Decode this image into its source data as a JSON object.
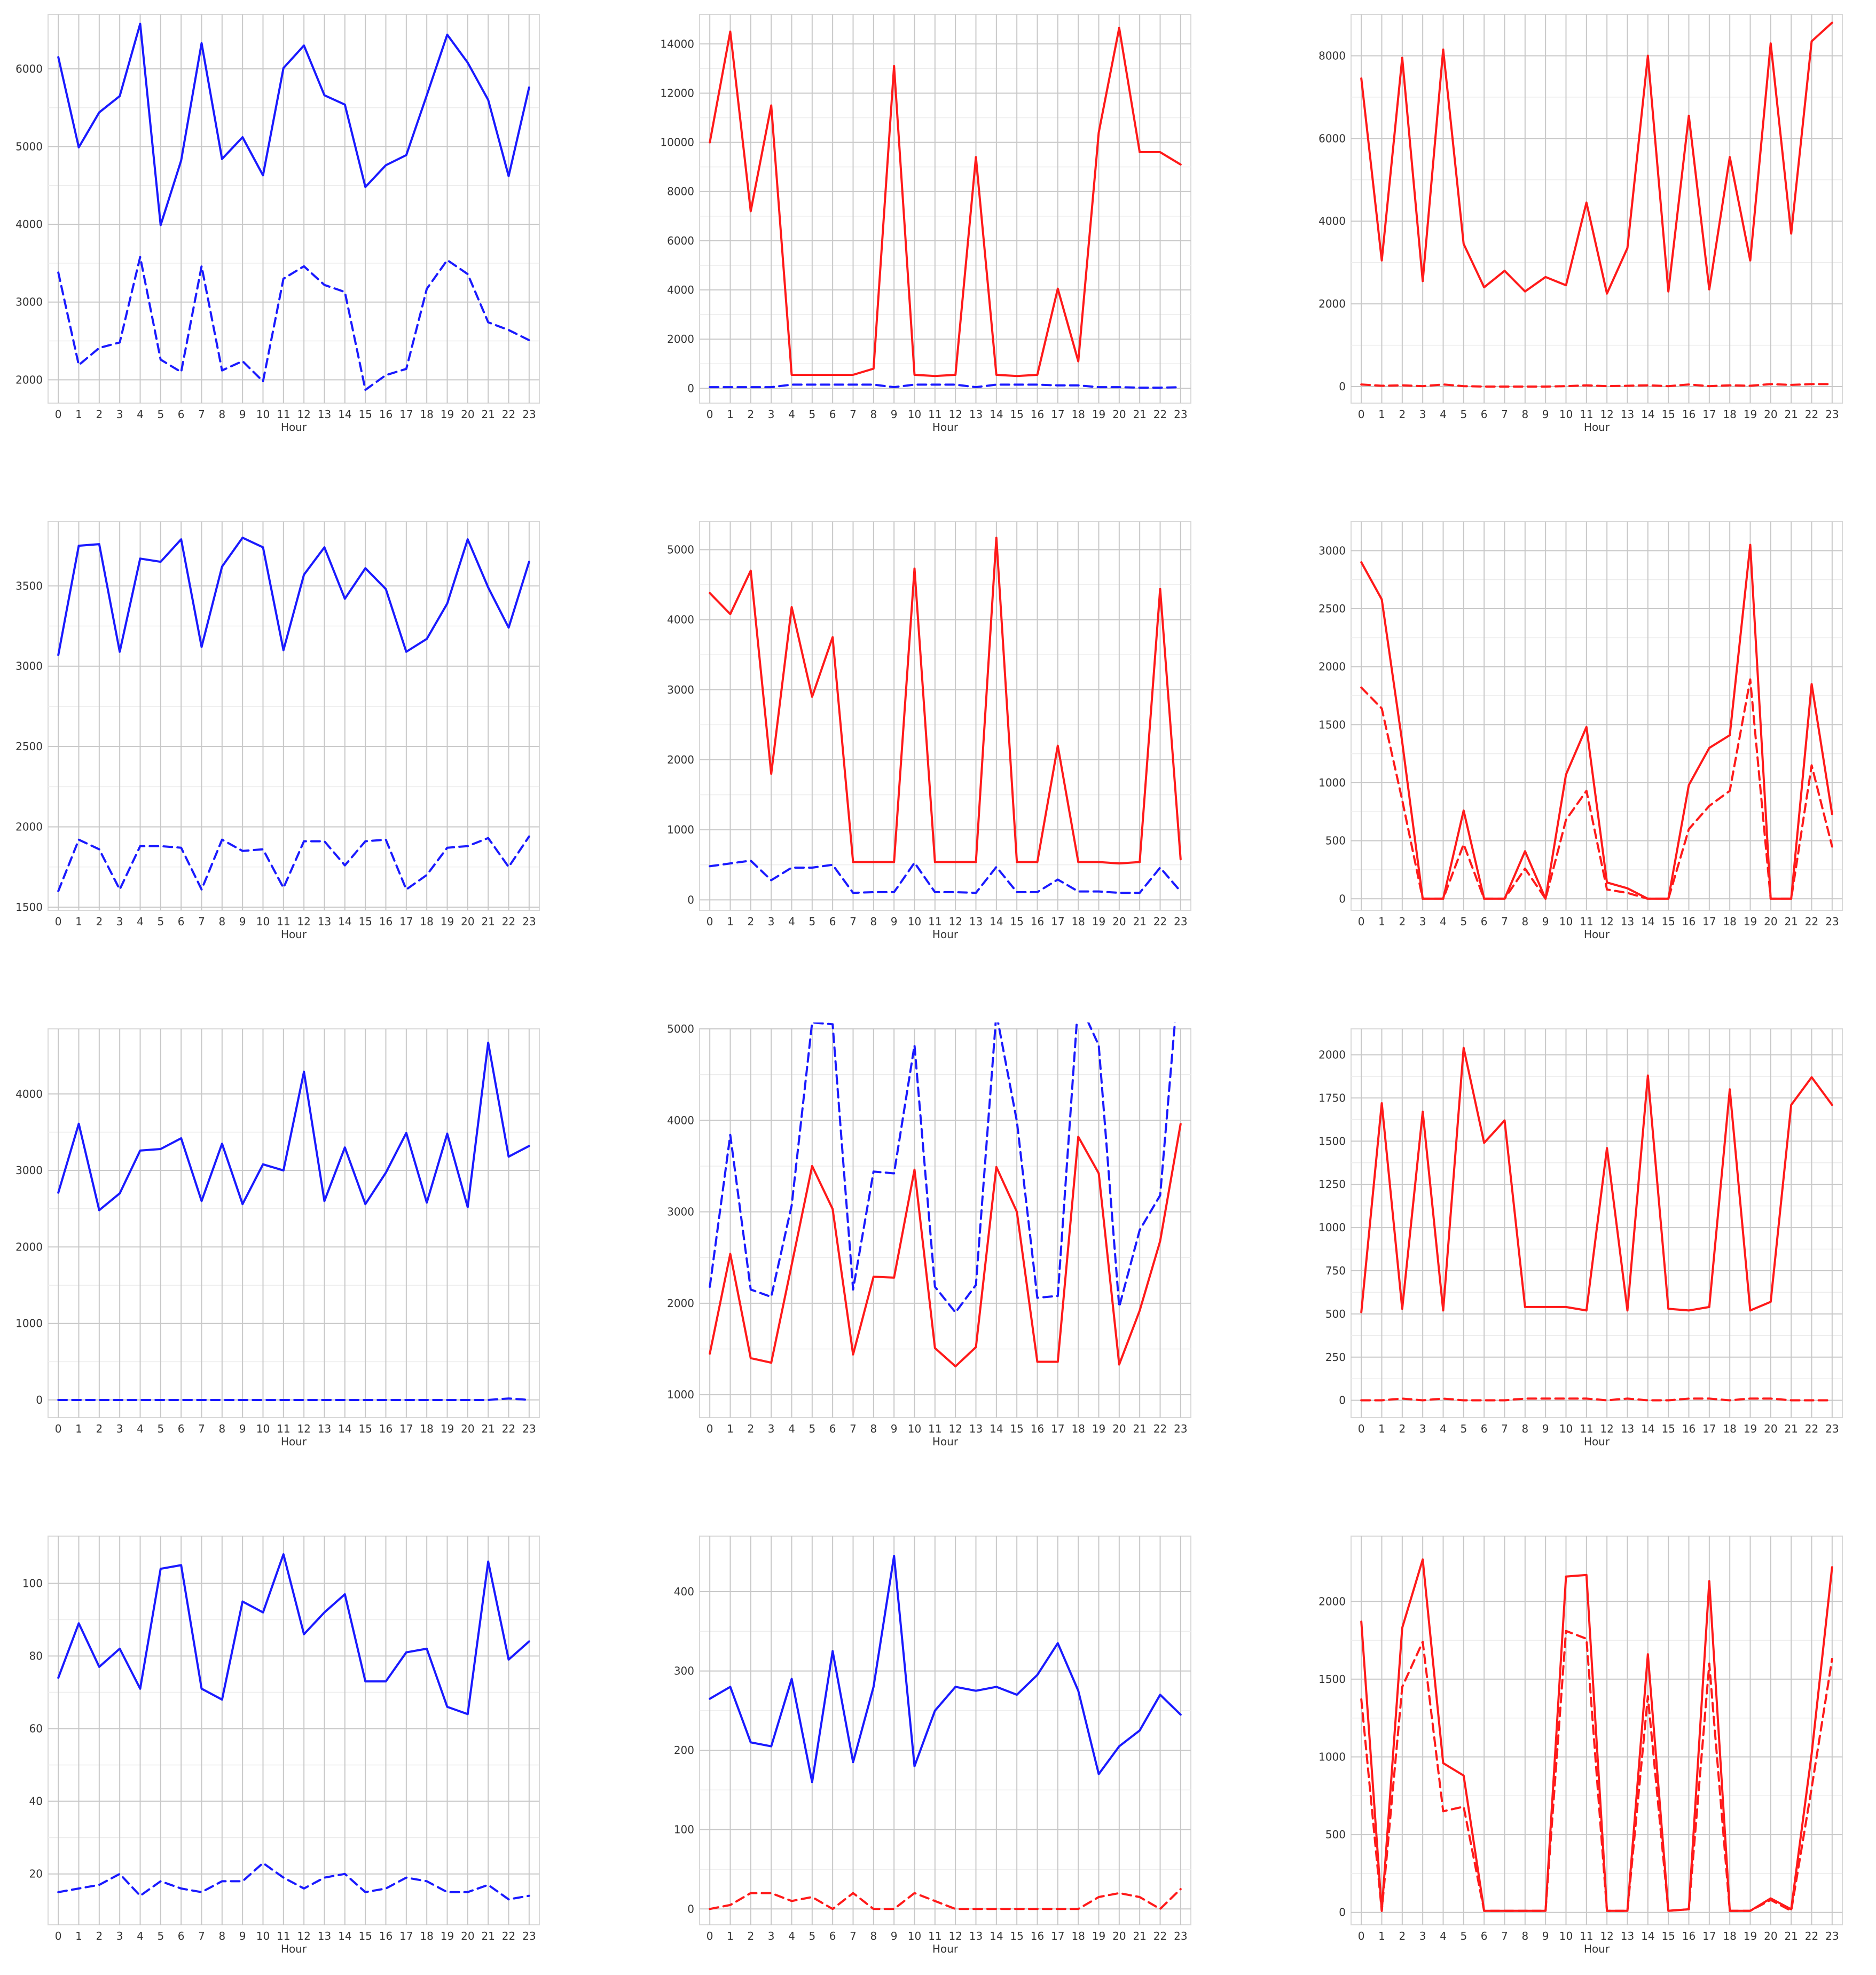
{
  "hours": [
    "0",
    "1",
    "2",
    "3",
    "4",
    "5",
    "6",
    "7",
    "8",
    "9",
    "10",
    "11",
    "12",
    "13",
    "14",
    "15",
    "16",
    "17",
    "18",
    "19",
    "20",
    "21",
    "22",
    "23"
  ],
  "colors": {
    "blue": "#1a1aff",
    "red": "#ff1a1a"
  },
  "chart_data": [
    {
      "type": "line",
      "xlabel": "Hour",
      "ylabel": "",
      "ylim": [
        1700,
        6700
      ],
      "yticks": [
        2000,
        3000,
        4000,
        5000,
        6000
      ],
      "grid": true,
      "series": [
        {
          "color": "blue",
          "style": "solid",
          "values": [
            6150,
            4990,
            5440,
            5650,
            6580,
            3990,
            4820,
            6330,
            4840,
            5120,
            4630,
            6010,
            6300,
            5660,
            5540,
            4480,
            4760,
            4890,
            5660,
            6440,
            6080,
            5600,
            4620,
            5760
          ]
        },
        {
          "color": "blue",
          "style": "dashed",
          "values": [
            3380,
            2190,
            2410,
            2480,
            3580,
            2260,
            2100,
            3460,
            2120,
            2240,
            1980,
            3300,
            3460,
            3220,
            3130,
            1870,
            2060,
            2140,
            3170,
            3540,
            3360,
            2740,
            2640,
            2510
          ]
        }
      ]
    },
    {
      "type": "line",
      "xlabel": "Hour",
      "ylabel": "",
      "ylim": [
        -600,
        15200
      ],
      "yticks": [
        0,
        2000,
        4000,
        6000,
        8000,
        10000,
        12000,
        14000
      ],
      "grid": true,
      "series": [
        {
          "color": "red",
          "style": "solid",
          "values": [
            10000,
            14500,
            7200,
            11500,
            550,
            550,
            550,
            550,
            800,
            13100,
            550,
            500,
            550,
            9400,
            550,
            500,
            550,
            4050,
            1100,
            10400,
            14650,
            9600,
            9600,
            9100
          ]
        },
        {
          "color": "blue",
          "style": "dashed",
          "values": [
            50,
            50,
            50,
            50,
            150,
            150,
            150,
            150,
            150,
            50,
            150,
            150,
            150,
            50,
            150,
            150,
            150,
            120,
            120,
            50,
            50,
            30,
            30,
            50
          ]
        }
      ]
    },
    {
      "type": "line",
      "xlabel": "Hour",
      "ylabel": "",
      "ylim": [
        -400,
        9000
      ],
      "yticks": [
        0,
        2000,
        4000,
        6000,
        8000
      ],
      "grid": true,
      "series": [
        {
          "color": "red",
          "style": "solid",
          "values": [
            7450,
            3050,
            7950,
            2550,
            8150,
            3450,
            2400,
            2800,
            2300,
            2650,
            2450,
            4450,
            2250,
            3350,
            8000,
            2300,
            6550,
            2350,
            5550,
            3050,
            8300,
            3700,
            8350,
            8800
          ]
        },
        {
          "color": "red",
          "style": "dashed",
          "values": [
            50,
            20,
            30,
            10,
            50,
            10,
            0,
            0,
            0,
            0,
            10,
            30,
            10,
            20,
            30,
            10,
            50,
            10,
            30,
            20,
            60,
            40,
            60,
            60
          ]
        }
      ]
    },
    {
      "type": "line",
      "xlabel": "Hour",
      "ylabel": "",
      "ylim": [
        1480,
        3900
      ],
      "yticks": [
        1500,
        2000,
        2500,
        3000,
        3500
      ],
      "grid": true,
      "series": [
        {
          "color": "blue",
          "style": "solid",
          "values": [
            3070,
            3750,
            3760,
            3090,
            3670,
            3650,
            3790,
            3120,
            3620,
            3800,
            3740,
            3100,
            3570,
            3740,
            3420,
            3610,
            3480,
            3090,
            3170,
            3390,
            3790,
            3490,
            3240,
            3650
          ]
        },
        {
          "color": "blue",
          "style": "dashed",
          "values": [
            1600,
            1920,
            1860,
            1610,
            1880,
            1880,
            1870,
            1610,
            1920,
            1850,
            1860,
            1620,
            1910,
            1910,
            1760,
            1910,
            1920,
            1610,
            1700,
            1870,
            1880,
            1930,
            1750,
            1940
          ]
        }
      ]
    },
    {
      "type": "line",
      "xlabel": "Hour",
      "ylabel": "",
      "ylim": [
        -150,
        5400
      ],
      "yticks": [
        0,
        1000,
        2000,
        3000,
        4000,
        5000
      ],
      "grid": true,
      "series": [
        {
          "color": "red",
          "style": "solid",
          "values": [
            4380,
            4080,
            4700,
            1800,
            4180,
            2900,
            3750,
            540,
            540,
            540,
            4730,
            540,
            540,
            540,
            5170,
            540,
            540,
            2200,
            540,
            540,
            520,
            540,
            4440,
            580
          ]
        },
        {
          "color": "blue",
          "style": "dashed",
          "values": [
            480,
            520,
            560,
            280,
            460,
            460,
            500,
            100,
            110,
            110,
            530,
            110,
            110,
            100,
            470,
            110,
            110,
            290,
            120,
            120,
            100,
            100,
            460,
            120
          ]
        }
      ]
    },
    {
      "type": "line",
      "xlabel": "Hour",
      "ylabel": "",
      "ylim": [
        -100,
        3250
      ],
      "yticks": [
        0,
        500,
        1000,
        1500,
        2000,
        2500,
        3000
      ],
      "grid": true,
      "series": [
        {
          "color": "red",
          "style": "solid",
          "values": [
            2900,
            2580,
            1350,
            0,
            0,
            760,
            0,
            0,
            410,
            0,
            1070,
            1480,
            140,
            90,
            0,
            0,
            980,
            1300,
            1410,
            3050,
            0,
            0,
            1850,
            730
          ]
        },
        {
          "color": "red",
          "style": "dashed",
          "values": [
            1820,
            1640,
            850,
            0,
            0,
            470,
            0,
            0,
            260,
            0,
            680,
            930,
            80,
            50,
            0,
            0,
            600,
            800,
            930,
            1890,
            0,
            0,
            1150,
            450
          ]
        }
      ]
    },
    {
      "type": "line",
      "xlabel": "Hour",
      "ylabel": "",
      "ylim": [
        -230,
        4850
      ],
      "yticks": [
        0,
        1000,
        2000,
        3000,
        4000
      ],
      "grid": true,
      "series": [
        {
          "color": "blue",
          "style": "solid",
          "values": [
            2710,
            3610,
            2480,
            2700,
            3260,
            3280,
            3420,
            2600,
            3350,
            2560,
            3080,
            3000,
            4290,
            2600,
            3300,
            2560,
            2970,
            3490,
            2580,
            3480,
            2520,
            4670,
            3180,
            3320
          ]
        },
        {
          "color": "blue",
          "style": "dashed",
          "values": [
            0,
            0,
            0,
            0,
            0,
            0,
            0,
            0,
            0,
            0,
            0,
            0,
            0,
            0,
            0,
            0,
            0,
            0,
            0,
            0,
            0,
            0,
            20,
            0
          ]
        }
      ]
    },
    {
      "type": "line",
      "xlabel": "Hour",
      "ylabel": "",
      "ylim": [
        750,
        5000
      ],
      "yticks": [
        1000,
        2000,
        3000,
        4000,
        5000
      ],
      "grid": true,
      "series": [
        {
          "color": "red",
          "style": "solid",
          "values": [
            1450,
            2540,
            1400,
            1350,
            2420,
            3500,
            3030,
            1440,
            2290,
            2280,
            3460,
            1510,
            1310,
            1520,
            3490,
            3000,
            1360,
            1360,
            3820,
            3420,
            1330,
            1920,
            2680,
            3960
          ]
        },
        {
          "color": "blue",
          "style": "dashed",
          "values": [
            2180,
            3840,
            2150,
            2070,
            3070,
            5070,
            5050,
            2150,
            3440,
            3420,
            4820,
            2180,
            1900,
            2200,
            5170,
            3990,
            2060,
            2080,
            5310,
            4820,
            1960,
            2800,
            3180,
            5800
          ]
        }
      ]
    },
    {
      "type": "line",
      "xlabel": "Hour",
      "ylabel": "",
      "ylim": [
        -100,
        2150
      ],
      "yticks": [
        0,
        250,
        500,
        750,
        1000,
        1250,
        1500,
        1750,
        2000
      ],
      "grid": true,
      "series": [
        {
          "color": "red",
          "style": "solid",
          "values": [
            510,
            1720,
            530,
            1670,
            520,
            2040,
            1490,
            1620,
            540,
            540,
            540,
            520,
            1460,
            520,
            1880,
            530,
            520,
            540,
            1800,
            520,
            570,
            1710,
            1870,
            1710
          ]
        },
        {
          "color": "red",
          "style": "dashed",
          "values": [
            0,
            0,
            10,
            0,
            10,
            0,
            0,
            0,
            10,
            10,
            10,
            10,
            0,
            10,
            0,
            0,
            10,
            10,
            0,
            10,
            10,
            0,
            0,
            0
          ]
        }
      ]
    },
    {
      "type": "line",
      "xlabel": "Hour",
      "ylabel": "",
      "ylim": [
        6,
        113
      ],
      "yticks": [
        20,
        40,
        60,
        80,
        100
      ],
      "grid": true,
      "series": [
        {
          "color": "blue",
          "style": "solid",
          "values": [
            74,
            89,
            77,
            82,
            71,
            104,
            105,
            71,
            68,
            95,
            92,
            108,
            86,
            92,
            97,
            73,
            73,
            81,
            82,
            66,
            64,
            106,
            79,
            84
          ]
        },
        {
          "color": "blue",
          "style": "dashed",
          "values": [
            15,
            16,
            17,
            20,
            14,
            18,
            16,
            15,
            18,
            18,
            23,
            19,
            16,
            19,
            20,
            15,
            16,
            19,
            18,
            15,
            15,
            17,
            13,
            14
          ]
        }
      ]
    },
    {
      "type": "line",
      "xlabel": "Hour",
      "ylabel": "",
      "ylim": [
        -20,
        470
      ],
      "yticks": [
        0,
        100,
        200,
        300,
        400
      ],
      "grid": true,
      "series": [
        {
          "color": "blue",
          "style": "solid",
          "values": [
            265,
            280,
            210,
            205,
            290,
            160,
            325,
            185,
            280,
            445,
            180,
            250,
            280,
            275,
            280,
            270,
            295,
            335,
            275,
            170,
            205,
            225,
            270,
            245
          ]
        },
        {
          "color": "red",
          "style": "dashed",
          "values": [
            0,
            5,
            20,
            20,
            10,
            15,
            0,
            20,
            0,
            0,
            20,
            10,
            0,
            0,
            0,
            0,
            0,
            0,
            0,
            15,
            20,
            15,
            0,
            25
          ]
        }
      ]
    },
    {
      "type": "line",
      "xlabel": "Hour",
      "ylabel": "",
      "ylim": [
        -80,
        2420
      ],
      "yticks": [
        0,
        500,
        1000,
        1500,
        2000
      ],
      "grid": true,
      "series": [
        {
          "color": "red",
          "style": "solid",
          "values": [
            1870,
            10,
            1830,
            2270,
            960,
            880,
            10,
            10,
            10,
            10,
            2160,
            2170,
            10,
            10,
            1660,
            10,
            20,
            2130,
            10,
            10,
            90,
            20,
            1020,
            2220
          ]
        },
        {
          "color": "red",
          "style": "dashed",
          "values": [
            1370,
            10,
            1450,
            1740,
            650,
            680,
            10,
            10,
            10,
            10,
            1810,
            1760,
            10,
            10,
            1390,
            10,
            20,
            1600,
            10,
            10,
            80,
            10,
            800,
            1630
          ]
        }
      ]
    }
  ]
}
